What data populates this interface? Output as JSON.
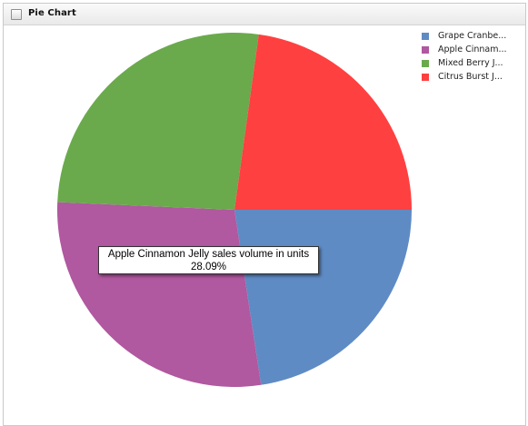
{
  "panel": {
    "title": "Pie Chart"
  },
  "chart_data": {
    "type": "pie",
    "title": "",
    "categories": [
      "Grape Cranbe...",
      "Apple Cinnam...",
      "Mixed Berry J...",
      "Citrus Burst J..."
    ],
    "values": [
      22.6,
      28.09,
      26.5,
      22.81
    ],
    "colors": [
      "#5f8bc4",
      "#b058a0",
      "#6aaa4c",
      "#ff4040"
    ],
    "start_angle_deg": 0,
    "direction": "clockwise",
    "legend_position": "top-right"
  },
  "tooltip": {
    "line1": "Apple Cinnamon Jelly sales volume in units",
    "line2": "28.09%"
  }
}
